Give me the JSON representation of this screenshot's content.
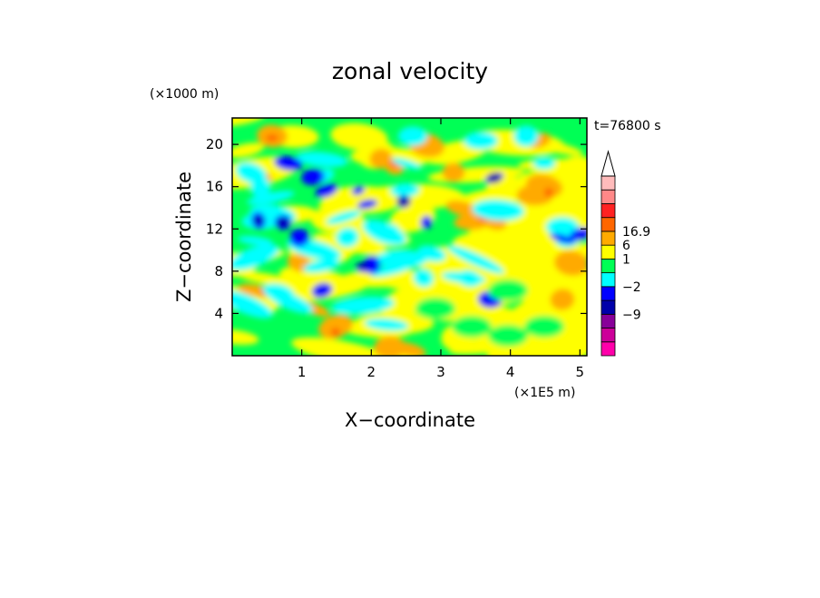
{
  "chart_data": {
    "type": "heatmap",
    "title": "zonal velocity",
    "xlabel": "X−coordinate",
    "ylabel": "Z−coordinate",
    "x_unit": "(×1E5 m)",
    "y_unit": "(×1000 m)",
    "time_label": "t=76800 s",
    "xlim": [
      0,
      5.1
    ],
    "ylim": [
      0,
      22.5
    ],
    "xticks": [
      "1",
      "2",
      "3",
      "4",
      "5"
    ],
    "xtick_values": [
      1,
      2,
      3,
      4,
      5
    ],
    "yticks": [
      "4",
      "8",
      "12",
      "16",
      "20"
    ],
    "ytick_values": [
      4,
      8,
      12,
      16,
      20
    ],
    "colorbar": {
      "labels": [
        {
          "text": "16.9",
          "index": 9
        },
        {
          "text": "6",
          "index": 8
        },
        {
          "text": "1",
          "index": 7
        },
        {
          "text": "−2",
          "index": 5
        },
        {
          "text": "−9",
          "index": 3
        }
      ],
      "colors": [
        "#ff00aa",
        "#cc0099",
        "#880099",
        "#0000aa",
        "#0000ff",
        "#00ffff",
        "#00ff55",
        "#ffff00",
        "#ffaa00",
        "#ff6600",
        "#ff2222",
        "#ff8888",
        "#ffbbbb"
      ]
    }
  }
}
